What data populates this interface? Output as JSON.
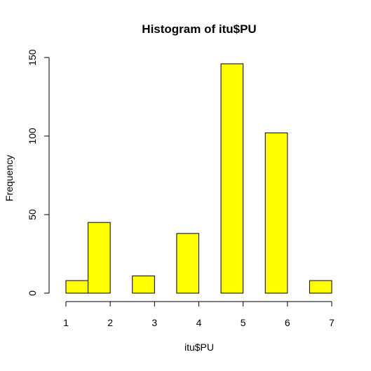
{
  "chart_data": {
    "type": "bar",
    "title": "Histogram of itu$PU",
    "xlabel": "itu$PU",
    "ylabel": "Frequency",
    "bins": [
      {
        "start": 1.0,
        "end": 1.5,
        "count": 8
      },
      {
        "start": 1.5,
        "end": 2.0,
        "count": 45
      },
      {
        "start": 2.0,
        "end": 2.5,
        "count": 0
      },
      {
        "start": 2.5,
        "end": 3.0,
        "count": 11
      },
      {
        "start": 3.0,
        "end": 3.5,
        "count": 0
      },
      {
        "start": 3.5,
        "end": 4.0,
        "count": 38
      },
      {
        "start": 4.0,
        "end": 4.5,
        "count": 0
      },
      {
        "start": 4.5,
        "end": 5.0,
        "count": 146
      },
      {
        "start": 5.0,
        "end": 5.5,
        "count": 0
      },
      {
        "start": 5.5,
        "end": 6.0,
        "count": 102
      },
      {
        "start": 6.0,
        "end": 6.5,
        "count": 0
      },
      {
        "start": 6.5,
        "end": 7.0,
        "count": 8
      }
    ],
    "xlim": [
      1,
      7
    ],
    "ylim": [
      0,
      150
    ],
    "x_ticks": [
      1,
      2,
      3,
      4,
      5,
      6,
      7
    ],
    "y_ticks": [
      0,
      50,
      100,
      150
    ],
    "grid": false,
    "legend": "none",
    "bar_color": "#ffff00",
    "bar_border_color": "#000000"
  }
}
